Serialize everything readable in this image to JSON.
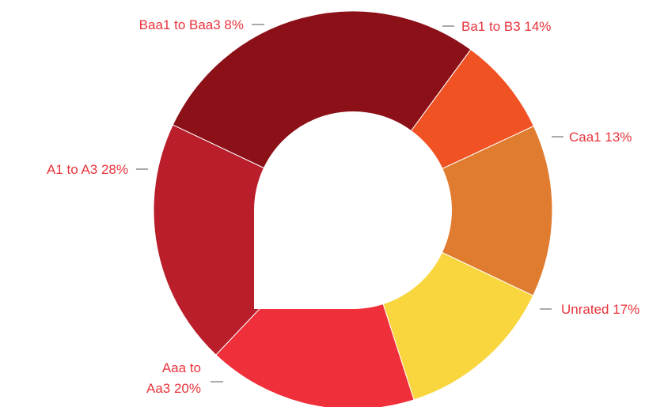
{
  "chart_data": {
    "type": "pie",
    "variant": "donut",
    "slices": [
      {
        "label": "Ba1 to B3 14%",
        "value": 14,
        "color": "#e07c30"
      },
      {
        "label": "Caa1 13%",
        "value": 13,
        "color": "#f9d63e"
      },
      {
        "label": "Unrated 17%",
        "value": 17,
        "color": "#ef2f3a"
      },
      {
        "label": "Aaa to Aa3 20%",
        "label_lines": [
          "Aaa to",
          "Aa3 20%"
        ],
        "value": 20,
        "color": "#b91e2a"
      },
      {
        "label": "A1 to A3 28%",
        "value": 28,
        "color": "#8c1018"
      },
      {
        "label": "Baa1 to Baa3 8%",
        "value": 8,
        "color": "#f05224"
      }
    ],
    "label_color": "#e8343c",
    "background": "#ffffff"
  }
}
